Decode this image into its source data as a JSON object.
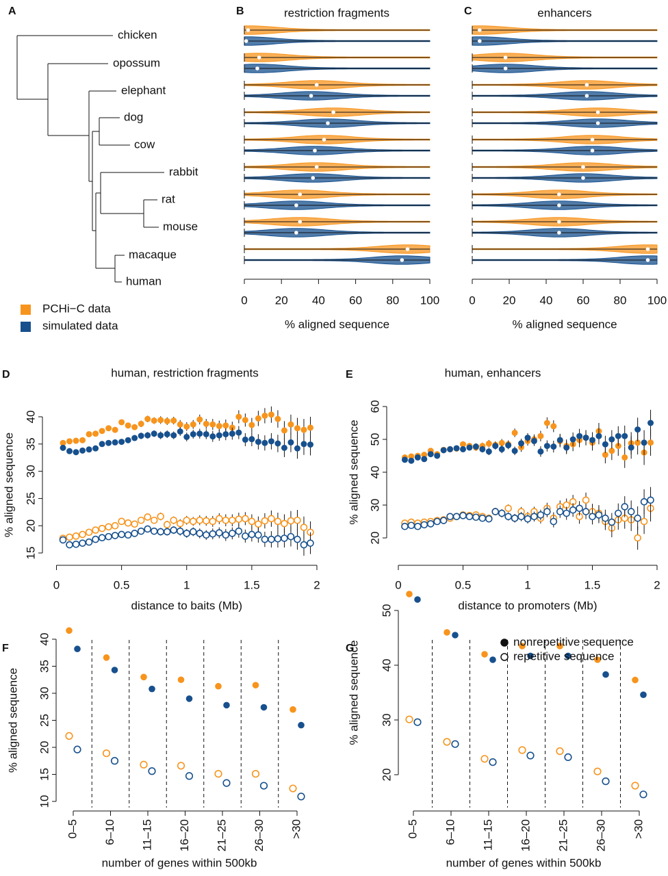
{
  "tree": {
    "panel": "A",
    "leaves": [
      "chicken",
      "opossum",
      "elephant",
      "dog",
      "cow",
      "rabbit",
      "rat",
      "mouse",
      "macaque",
      "human"
    ]
  },
  "legend": [
    {
      "label": "PCHi−C data",
      "color": "#f7941d"
    },
    {
      "label": "simulated data",
      "color": "#17508d"
    }
  ],
  "chart_data": [
    {
      "type": "violin",
      "panel": "B",
      "title": "restriction fragments",
      "xlabel": "% aligned sequence",
      "xlim": [
        0,
        100
      ],
      "xticks": [
        0,
        20,
        40,
        60,
        80,
        100
      ],
      "series": [
        {
          "color": "#f7941d",
          "medians": [
            2,
            8,
            39,
            48,
            43,
            39,
            30,
            30,
            88
          ]
        },
        {
          "color": "#17508d",
          "medians": [
            1,
            7,
            36,
            45,
            38,
            37,
            28,
            28,
            85
          ]
        }
      ]
    },
    {
      "type": "violin",
      "panel": "C",
      "title": "enhancers",
      "xlabel": "% aligned sequence",
      "xlim": [
        0,
        100
      ],
      "xticks": [
        0,
        20,
        40,
        60,
        80,
        100
      ],
      "series": [
        {
          "color": "#f7941d",
          "medians": [
            4,
            18,
            62,
            68,
            65,
            60,
            47,
            47,
            95
          ]
        },
        {
          "color": "#17508d",
          "medians": [
            4,
            18,
            62,
            68,
            65,
            60,
            47,
            47,
            95
          ]
        }
      ]
    },
    {
      "type": "scatter",
      "panel": "D",
      "title": "human, restriction fragments",
      "xlabel": "distance to baits (Mb)",
      "ylabel": "% aligned sequence",
      "xlim": [
        0,
        2
      ],
      "xticks": [
        0,
        0.5,
        1,
        1.5,
        2
      ],
      "ylim": [
        15,
        40
      ],
      "yticks": [
        15,
        20,
        25,
        30,
        35,
        40
      ],
      "x": [
        0.05,
        0.1,
        0.15,
        0.2,
        0.25,
        0.3,
        0.35,
        0.4,
        0.45,
        0.5,
        0.55,
        0.6,
        0.65,
        0.7,
        0.75,
        0.8,
        0.85,
        0.9,
        0.95,
        1,
        1.05,
        1.1,
        1.15,
        1.2,
        1.25,
        1.3,
        1.35,
        1.4,
        1.45,
        1.5,
        1.55,
        1.6,
        1.65,
        1.7,
        1.75,
        1.8,
        1.85,
        1.9,
        1.95
      ],
      "series": [
        {
          "color": "#f7941d",
          "filled": true,
          "values": [
            35.2,
            35.5,
            35.6,
            35.7,
            36.8,
            36.9,
            37.4,
            37.9,
            37.6,
            39.0,
            38.4,
            38.1,
            38.7,
            39.6,
            39.3,
            39.4,
            39.2,
            39.3,
            38.6,
            38.2,
            38.6,
            39.5,
            38.7,
            38.6,
            38.3,
            38.4,
            38.0,
            40.0,
            39.4,
            38.5,
            39.7,
            40.2,
            40.4,
            39.6,
            37.5,
            38.6,
            37.9,
            37.6,
            38.0
          ],
          "errors": [
            0.3,
            0.3,
            0.3,
            0.3,
            0.3,
            0.4,
            0.4,
            0.4,
            0.4,
            0.5,
            0.5,
            0.5,
            0.6,
            0.6,
            0.6,
            0.7,
            0.7,
            0.7,
            0.8,
            0.8,
            0.8,
            0.9,
            0.9,
            1.0,
            1.0,
            1.1,
            1.1,
            1.2,
            1.2,
            1.3,
            1.4,
            1.4,
            1.5,
            1.6,
            1.7,
            1.8,
            1.9,
            2.0,
            2.0
          ]
        },
        {
          "color": "#17508d",
          "filled": true,
          "values": [
            34.3,
            33.7,
            33.5,
            33.8,
            34.0,
            34.2,
            35.0,
            35.2,
            35.3,
            35.4,
            35.7,
            36.1,
            36.5,
            36.6,
            36.9,
            36.6,
            36.8,
            36.6,
            37.3,
            36.3,
            36.8,
            36.9,
            36.8,
            36.4,
            36.6,
            36.8,
            36.9,
            37.1,
            35.8,
            35.9,
            35.4,
            35.2,
            35.5,
            35.1,
            34.3,
            35.3,
            34.2,
            35.0,
            34.9
          ],
          "errors": [
            0.3,
            0.3,
            0.3,
            0.3,
            0.3,
            0.4,
            0.4,
            0.4,
            0.4,
            0.5,
            0.5,
            0.5,
            0.6,
            0.6,
            0.6,
            0.7,
            0.7,
            0.7,
            0.8,
            0.8,
            0.8,
            0.9,
            0.9,
            1.0,
            1.0,
            1.1,
            1.1,
            1.2,
            1.2,
            1.3,
            1.4,
            1.4,
            1.5,
            1.6,
            1.7,
            1.8,
            1.9,
            2.0,
            2.0
          ]
        },
        {
          "color": "#f7941d",
          "filled": false,
          "values": [
            17.7,
            17.9,
            18.1,
            18.4,
            18.8,
            19.2,
            19.5,
            19.8,
            20.0,
            20.8,
            20.5,
            20.3,
            21.0,
            21.6,
            21.0,
            21.7,
            20.2,
            21.0,
            20.4,
            21.0,
            20.8,
            21.0,
            20.9,
            20.8,
            21.3,
            21.0,
            21.0,
            21.2,
            21.3,
            20.8,
            20.3,
            20.9,
            21.3,
            20.8,
            20.4,
            20.9,
            21.0,
            19.7,
            18.8
          ],
          "errors": [
            0.3,
            0.3,
            0.3,
            0.3,
            0.3,
            0.4,
            0.4,
            0.4,
            0.4,
            0.5,
            0.5,
            0.5,
            0.6,
            0.6,
            0.6,
            0.7,
            0.7,
            0.7,
            0.8,
            0.8,
            0.8,
            0.9,
            0.9,
            1.0,
            1.0,
            1.1,
            1.1,
            1.2,
            1.2,
            1.3,
            1.4,
            1.4,
            1.5,
            1.6,
            1.7,
            1.8,
            1.9,
            2.0,
            2.0
          ]
        },
        {
          "color": "#17508d",
          "filled": false,
          "values": [
            17.4,
            16.5,
            16.6,
            16.8,
            17.0,
            17.5,
            17.8,
            18.0,
            18.2,
            18.4,
            18.3,
            18.6,
            19.0,
            19.4,
            19.0,
            18.9,
            18.9,
            19.2,
            19.0,
            18.6,
            18.9,
            18.6,
            18.3,
            18.5,
            18.7,
            18.3,
            18.6,
            19.0,
            18.1,
            18.4,
            18.3,
            17.5,
            17.5,
            17.6,
            17.7,
            18.0,
            17.5,
            16.5,
            16.8
          ],
          "errors": [
            0.3,
            0.3,
            0.3,
            0.3,
            0.3,
            0.4,
            0.4,
            0.4,
            0.4,
            0.5,
            0.5,
            0.5,
            0.6,
            0.6,
            0.6,
            0.7,
            0.7,
            0.7,
            0.8,
            0.8,
            0.8,
            0.9,
            0.9,
            1.0,
            1.0,
            1.1,
            1.1,
            1.2,
            1.2,
            1.3,
            1.4,
            1.4,
            1.5,
            1.6,
            1.7,
            1.8,
            1.9,
            2.0,
            2.0
          ]
        }
      ]
    },
    {
      "type": "scatter",
      "panel": "E",
      "title": "human, enhancers",
      "xlabel": "distance to promoters (Mb)",
      "ylabel": "% aligned sequence",
      "xlim": [
        0,
        2
      ],
      "xticks": [
        0,
        0.5,
        1,
        1.5,
        2
      ],
      "ylim": [
        20,
        60
      ],
      "yticks": [
        20,
        30,
        40,
        50,
        60
      ],
      "x": [
        0.05,
        0.1,
        0.15,
        0.2,
        0.25,
        0.3,
        0.35,
        0.4,
        0.45,
        0.5,
        0.55,
        0.6,
        0.65,
        0.7,
        0.75,
        0.8,
        0.85,
        0.9,
        0.95,
        1,
        1.05,
        1.1,
        1.15,
        1.2,
        1.25,
        1.3,
        1.35,
        1.4,
        1.45,
        1.5,
        1.55,
        1.6,
        1.65,
        1.7,
        1.75,
        1.8,
        1.85,
        1.9,
        1.95
      ],
      "series": [
        {
          "color": "#f7941d",
          "filled": true,
          "values": [
            44.5,
            44.8,
            45.0,
            45.3,
            46.5,
            45.5,
            46.8,
            47.0,
            47.2,
            48.5,
            48.0,
            47.5,
            48.0,
            48.7,
            48.3,
            48.9,
            48.5,
            52.0,
            47.6,
            49.5,
            50.0,
            51.0,
            55.0,
            54.0,
            49.5,
            48.0,
            48.5,
            49.8,
            50.5,
            49.0,
            52.5,
            45.3,
            46.5,
            48.0,
            44.5,
            48.8,
            49.0,
            46.0,
            49.0
          ],
          "errors": [
            0.6,
            0.6,
            0.6,
            0.7,
            0.7,
            0.7,
            0.8,
            0.8,
            0.8,
            0.9,
            0.9,
            1.0,
            1.0,
            1.1,
            1.1,
            1.2,
            1.2,
            1.3,
            1.4,
            1.4,
            1.5,
            1.6,
            1.7,
            1.8,
            1.9,
            2.0,
            2.1,
            2.2,
            2.3,
            2.4,
            2.5,
            2.6,
            2.8,
            3.0,
            3.2,
            3.4,
            3.6,
            3.8,
            4.0
          ]
        },
        {
          "color": "#17508d",
          "filled": true,
          "values": [
            43.8,
            43.5,
            44.5,
            44.0,
            45.5,
            45.0,
            46.7,
            47.0,
            47.3,
            47.0,
            47.5,
            47.8,
            47.0,
            46.3,
            48.0,
            47.0,
            48.2,
            46.5,
            48.8,
            50.5,
            49.5,
            46.3,
            48.0,
            47.8,
            49.8,
            47.5,
            50.0,
            51.0,
            50.5,
            49.8,
            51.0,
            48.5,
            50.0,
            51.0,
            51.0,
            47.5,
            53.0,
            49.0,
            55.0
          ],
          "errors": [
            0.6,
            0.6,
            0.6,
            0.7,
            0.7,
            0.7,
            0.8,
            0.8,
            0.8,
            0.9,
            0.9,
            1.0,
            1.0,
            1.1,
            1.1,
            1.2,
            1.2,
            1.3,
            1.4,
            1.4,
            1.5,
            1.6,
            1.7,
            1.8,
            1.9,
            2.0,
            2.1,
            2.2,
            2.3,
            2.4,
            2.5,
            2.6,
            2.8,
            3.0,
            3.2,
            3.4,
            3.6,
            3.8,
            4.0
          ]
        },
        {
          "color": "#f7941d",
          "filled": false,
          "values": [
            24.5,
            24.8,
            24.5,
            24.8,
            25.0,
            25.3,
            25.5,
            26.0,
            26.5,
            27.0,
            26.8,
            27.0,
            26.5,
            26.0,
            28.0,
            27.5,
            29.0,
            26.0,
            28.0,
            26.5,
            28.0,
            26.0,
            29.0,
            26.0,
            29.5,
            30.0,
            31.0,
            26.5,
            31.5,
            28.0,
            27.5,
            25.0,
            23.0,
            25.5,
            26.0,
            25.5,
            20.0,
            25.0,
            29.0
          ],
          "errors": [
            0.6,
            0.6,
            0.6,
            0.7,
            0.7,
            0.7,
            0.8,
            0.8,
            0.8,
            0.9,
            0.9,
            1.0,
            1.0,
            1.1,
            1.1,
            1.2,
            1.2,
            1.3,
            1.4,
            1.4,
            1.5,
            1.6,
            1.7,
            1.8,
            1.9,
            2.0,
            2.1,
            2.2,
            2.3,
            2.4,
            2.5,
            2.6,
            2.8,
            3.0,
            3.2,
            3.4,
            3.6,
            3.8,
            4.0
          ]
        },
        {
          "color": "#17508d",
          "filled": false,
          "values": [
            23.5,
            23.8,
            23.5,
            24.0,
            24.3,
            25.0,
            25.3,
            26.5,
            26.5,
            26.8,
            26.5,
            26.3,
            26.0,
            25.8,
            28.0,
            27.5,
            26.5,
            26.0,
            26.5,
            25.8,
            26.5,
            27.0,
            28.0,
            25.0,
            28.0,
            27.5,
            28.5,
            29.0,
            28.0,
            26.5,
            27.0,
            26.0,
            24.8,
            27.5,
            29.5,
            28.0,
            26.0,
            31.0,
            31.5
          ],
          "errors": [
            0.6,
            0.6,
            0.6,
            0.7,
            0.7,
            0.7,
            0.8,
            0.8,
            0.8,
            0.9,
            0.9,
            1.0,
            1.0,
            1.1,
            1.1,
            1.2,
            1.2,
            1.3,
            1.4,
            1.4,
            1.5,
            1.6,
            1.7,
            1.8,
            1.9,
            2.0,
            2.1,
            2.2,
            2.3,
            2.4,
            2.5,
            2.6,
            2.8,
            3.0,
            3.2,
            3.4,
            3.6,
            3.8,
            4.0
          ]
        }
      ]
    },
    {
      "type": "dot",
      "panel": "F",
      "xlabel": "number of genes within 500kb",
      "ylabel": "% aligned sequence",
      "categories": [
        "0–5",
        "6–10",
        "11–15",
        "16–20",
        "21–25",
        "26–30",
        ">30"
      ],
      "ylim": [
        10,
        40
      ],
      "yticks": [
        10,
        15,
        20,
        25,
        30,
        35,
        40
      ],
      "series": [
        {
          "color": "#f7941d",
          "filled": true,
          "values": [
            41.6,
            36.6,
            33.0,
            32.5,
            31.3,
            31.5,
            27.0
          ]
        },
        {
          "color": "#17508d",
          "filled": true,
          "values": [
            38.2,
            34.3,
            30.8,
            29.0,
            27.8,
            27.4,
            24.1
          ]
        },
        {
          "color": "#f7941d",
          "filled": false,
          "values": [
            22.1,
            18.9,
            16.8,
            16.6,
            15.1,
            15.1,
            12.4
          ]
        },
        {
          "color": "#17508d",
          "filled": false,
          "values": [
            19.6,
            17.5,
            15.6,
            14.7,
            13.4,
            12.9,
            10.9
          ]
        }
      ]
    },
    {
      "type": "dot",
      "panel": "G",
      "xlabel": "number of genes within 500kb",
      "ylabel": "% aligned sequence",
      "categories": [
        "0–5",
        "6–10",
        "11–15",
        "16–20",
        "21–25",
        "26–30",
        ">30"
      ],
      "ylim": [
        20,
        50
      ],
      "yticks": [
        20,
        30,
        40,
        50
      ],
      "legend": [
        {
          "label": "nonrepetitive sequence",
          "filled": true
        },
        {
          "label": "repetitive sequence",
          "filled": false
        }
      ],
      "series": [
        {
          "color": "#f7941d",
          "filled": true,
          "values": [
            53.0,
            46.0,
            42.0,
            43.5,
            43.5,
            41.0,
            37.3
          ]
        },
        {
          "color": "#17508d",
          "filled": true,
          "values": [
            52.0,
            45.5,
            41.0,
            41.7,
            41.7,
            38.3,
            34.6
          ]
        },
        {
          "color": "#f7941d",
          "filled": false,
          "values": [
            30.1,
            26.0,
            22.9,
            24.5,
            24.3,
            20.6,
            18.0
          ]
        },
        {
          "color": "#17508d",
          "filled": false,
          "values": [
            29.6,
            25.6,
            22.3,
            23.5,
            23.2,
            18.8,
            16.4
          ]
        }
      ]
    }
  ]
}
